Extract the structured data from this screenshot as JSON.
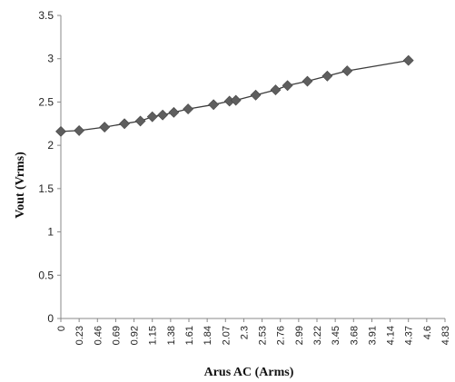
{
  "chart_data": {
    "type": "line",
    "title": "",
    "xlabel": "Arus AC (Arms)",
    "ylabel": "Vout (Vrms)",
    "ylim": [
      0,
      3.5
    ],
    "yticks": [
      "0",
      "0.5",
      "1",
      "1.5",
      "2",
      "2.5",
      "3",
      "3.5"
    ],
    "xticks": [
      "0",
      "0.23",
      "0.46",
      "0.69",
      "0.92",
      "1.15",
      "1.38",
      "1.61",
      "1.84",
      "2.07",
      "2.3",
      "2.53",
      "2.76",
      "2.99",
      "3.22",
      "3.45",
      "3.68",
      "3.91",
      "4.14",
      "4.37",
      "4.6",
      "4.83"
    ],
    "grid": false,
    "legend": "none",
    "marker": "diamond",
    "colors": {
      "line": "#3c3c3c",
      "marker": "#5e5e5e",
      "axis": "#888888"
    },
    "series": [
      {
        "x": [
          0,
          0.23,
          0.55,
          0.8,
          1.0,
          1.15,
          1.28,
          1.42,
          1.6,
          1.92,
          2.12,
          2.2,
          2.45,
          2.7,
          2.85,
          3.1,
          3.35,
          3.6,
          4.37
        ],
        "y": [
          2.16,
          2.17,
          2.21,
          2.25,
          2.28,
          2.33,
          2.35,
          2.38,
          2.42,
          2.47,
          2.51,
          2.52,
          2.58,
          2.64,
          2.69,
          2.74,
          2.8,
          2.86,
          2.98
        ]
      }
    ]
  }
}
